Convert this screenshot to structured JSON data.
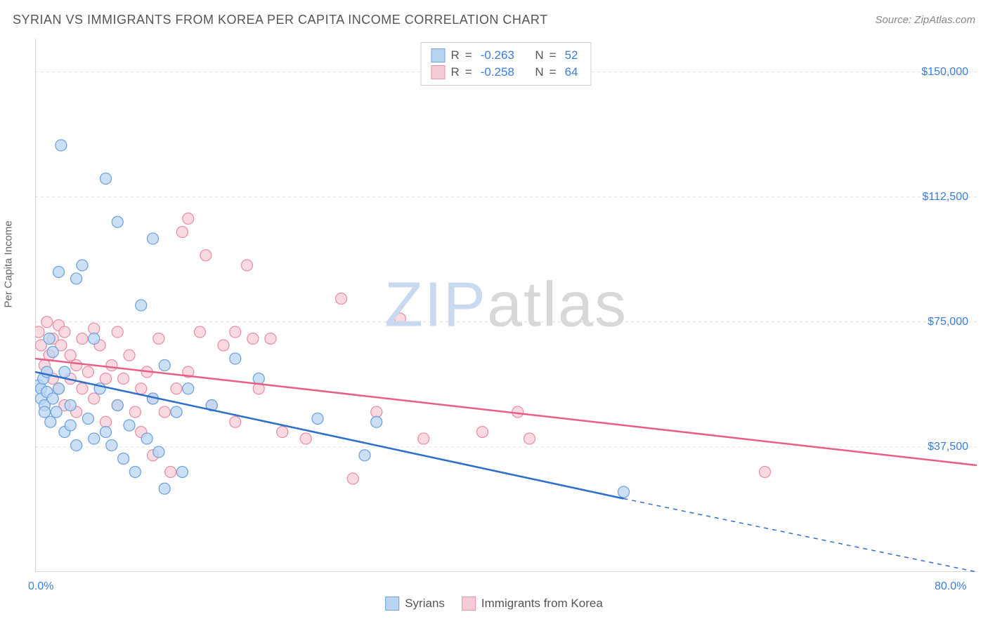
{
  "title": "SYRIAN VS IMMIGRANTS FROM KOREA PER CAPITA INCOME CORRELATION CHART",
  "source": "Source: ZipAtlas.com",
  "y_axis_label": "Per Capita Income",
  "watermark_zip": "ZIP",
  "watermark_atlas": "atlas",
  "chart": {
    "type": "scatter",
    "xlim": [
      0,
      80
    ],
    "ylim": [
      0,
      160000
    ],
    "x_ticks": [
      0,
      10,
      20,
      30,
      40,
      50,
      60,
      70,
      80
    ],
    "x_tick_labels_shown": {
      "0": "0.0%",
      "80": "80.0%"
    },
    "y_gridlines": [
      37500,
      75000,
      112500,
      150000
    ],
    "y_tick_labels": [
      "$37,500",
      "$75,000",
      "$112,500",
      "$150,000"
    ],
    "background_color": "#ffffff",
    "grid_color": "#dddddd",
    "axis_color": "#cccccc",
    "tick_label_color": "#3b7dd8",
    "axis_label_color": "#666666",
    "series": [
      {
        "name": "Syrians",
        "fill": "#b9d4f1",
        "stroke": "#6fa3e0",
        "marker_radius": 8,
        "r_value": "-0.263",
        "n_value": "52",
        "trend": {
          "color": "#2d6fc9",
          "width": 2.5,
          "start": [
            0,
            60000
          ],
          "solid_end": [
            50,
            22000
          ],
          "dash_end": [
            80,
            0
          ]
        },
        "points": [
          [
            0.3,
            56000
          ],
          [
            0.5,
            55000
          ],
          [
            0.5,
            52000
          ],
          [
            0.7,
            58000
          ],
          [
            0.8,
            50000
          ],
          [
            0.8,
            48000
          ],
          [
            1,
            60000
          ],
          [
            1,
            54000
          ],
          [
            1.2,
            70000
          ],
          [
            1.3,
            45000
          ],
          [
            1.5,
            66000
          ],
          [
            1.5,
            52000
          ],
          [
            1.8,
            48000
          ],
          [
            2,
            90000
          ],
          [
            2,
            55000
          ],
          [
            2.2,
            128000
          ],
          [
            2.5,
            60000
          ],
          [
            2.5,
            42000
          ],
          [
            3,
            50000
          ],
          [
            3,
            44000
          ],
          [
            3.5,
            88000
          ],
          [
            3.5,
            38000
          ],
          [
            4,
            92000
          ],
          [
            4.5,
            46000
          ],
          [
            5,
            70000
          ],
          [
            5,
            40000
          ],
          [
            5.5,
            55000
          ],
          [
            6,
            118000
          ],
          [
            6,
            42000
          ],
          [
            6.5,
            38000
          ],
          [
            7,
            105000
          ],
          [
            7,
            50000
          ],
          [
            7.5,
            34000
          ],
          [
            8,
            44000
          ],
          [
            8.5,
            30000
          ],
          [
            9,
            80000
          ],
          [
            9.5,
            40000
          ],
          [
            10,
            100000
          ],
          [
            10,
            52000
          ],
          [
            10.5,
            36000
          ],
          [
            11,
            62000
          ],
          [
            11,
            25000
          ],
          [
            12,
            48000
          ],
          [
            12.5,
            30000
          ],
          [
            13,
            55000
          ],
          [
            15,
            50000
          ],
          [
            17,
            64000
          ],
          [
            19,
            58000
          ],
          [
            24,
            46000
          ],
          [
            28,
            35000
          ],
          [
            29,
            45000
          ],
          [
            50,
            24000
          ]
        ]
      },
      {
        "name": "Immigrants from Korea",
        "fill": "#f6cdd6",
        "stroke": "#ea8fa6",
        "marker_radius": 8,
        "r_value": "-0.258",
        "n_value": "64",
        "trend": {
          "color": "#e85f86",
          "width": 2.5,
          "start": [
            0,
            64000
          ],
          "solid_end": [
            80,
            32000
          ],
          "dash_end": null
        },
        "points": [
          [
            0.3,
            72000
          ],
          [
            0.5,
            68000
          ],
          [
            0.8,
            62000
          ],
          [
            1,
            75000
          ],
          [
            1,
            60000
          ],
          [
            1.2,
            65000
          ],
          [
            1.5,
            58000
          ],
          [
            1.5,
            70000
          ],
          [
            2,
            74000
          ],
          [
            2,
            55000
          ],
          [
            2.2,
            68000
          ],
          [
            2.5,
            72000
          ],
          [
            2.5,
            50000
          ],
          [
            3,
            65000
          ],
          [
            3,
            58000
          ],
          [
            3.5,
            62000
          ],
          [
            3.5,
            48000
          ],
          [
            4,
            70000
          ],
          [
            4,
            55000
          ],
          [
            4.5,
            60000
          ],
          [
            5,
            73000
          ],
          [
            5,
            52000
          ],
          [
            5.5,
            68000
          ],
          [
            6,
            58000
          ],
          [
            6,
            45000
          ],
          [
            6.5,
            62000
          ],
          [
            7,
            72000
          ],
          [
            7,
            50000
          ],
          [
            7.5,
            58000
          ],
          [
            8,
            65000
          ],
          [
            8.5,
            48000
          ],
          [
            9,
            55000
          ],
          [
            9,
            42000
          ],
          [
            9.5,
            60000
          ],
          [
            10,
            52000
          ],
          [
            10,
            35000
          ],
          [
            10.5,
            70000
          ],
          [
            11,
            48000
          ],
          [
            11.5,
            30000
          ],
          [
            12,
            55000
          ],
          [
            12.5,
            102000
          ],
          [
            13,
            106000
          ],
          [
            13,
            60000
          ],
          [
            14,
            72000
          ],
          [
            14.5,
            95000
          ],
          [
            15,
            50000
          ],
          [
            16,
            68000
          ],
          [
            17,
            72000
          ],
          [
            17,
            45000
          ],
          [
            18,
            92000
          ],
          [
            18.5,
            70000
          ],
          [
            19,
            55000
          ],
          [
            20,
            70000
          ],
          [
            21,
            42000
          ],
          [
            23,
            40000
          ],
          [
            26,
            82000
          ],
          [
            27,
            28000
          ],
          [
            29,
            48000
          ],
          [
            31,
            76000
          ],
          [
            33,
            40000
          ],
          [
            38,
            42000
          ],
          [
            41,
            48000
          ],
          [
            42,
            40000
          ],
          [
            62,
            30000
          ]
        ]
      }
    ]
  },
  "legend_labels": {
    "series1": "Syrians",
    "series2": "Immigrants from Korea"
  },
  "stats_labels": {
    "r": "R",
    "n": "N",
    "eq": "="
  }
}
